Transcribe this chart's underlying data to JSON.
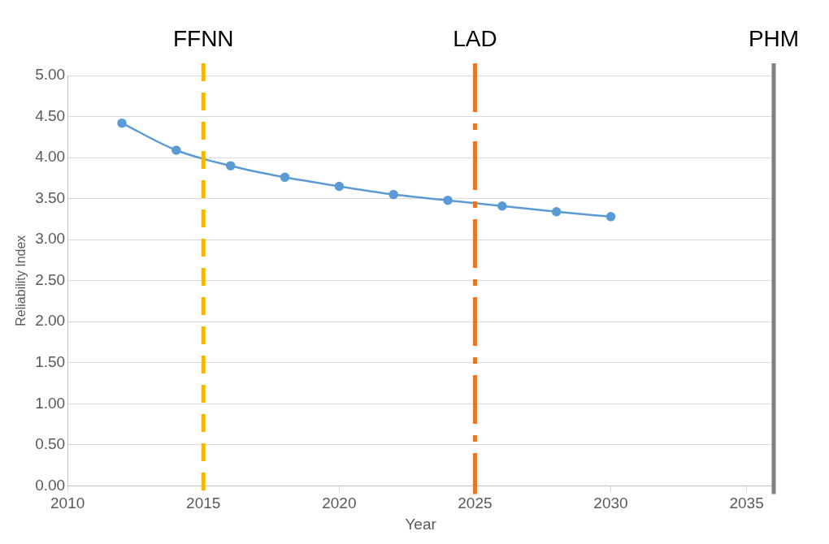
{
  "chart_data": {
    "type": "line",
    "xlabel": "Year",
    "ylabel": "Reliability Index",
    "x": [
      2012,
      2014,
      2016,
      2018,
      2020,
      2022,
      2024,
      2026,
      2028,
      2030
    ],
    "series": [
      {
        "color": "#5b9bd5",
        "values": [
          4.42,
          4.09,
          3.9,
          3.76,
          3.65,
          3.55,
          3.48,
          3.41,
          3.34,
          3.28
        ]
      }
    ],
    "xlim": [
      2010,
      2036
    ],
    "xticks": [
      2010,
      2015,
      2020,
      2025,
      2030,
      2035
    ],
    "ylim": [
      0,
      5
    ],
    "yticks": [
      {
        "value": 0,
        "label": "0.00"
      },
      {
        "value": 0.5,
        "label": "0.50"
      },
      {
        "value": 1,
        "label": "1.00"
      },
      {
        "value": 1.5,
        "label": "1.50"
      },
      {
        "value": 2,
        "label": "2.00"
      },
      {
        "value": 2.5,
        "label": "2.50"
      },
      {
        "value": 3,
        "label": "3.00"
      },
      {
        "value": 3.5,
        "label": "3.50"
      },
      {
        "value": 4,
        "label": "4.00"
      },
      {
        "value": 4.5,
        "label": "4.50"
      },
      {
        "value": 5,
        "label": "5.00"
      }
    ],
    "ref_lines": [
      {
        "axis": "x",
        "value": 2015,
        "label": "FFNN",
        "color": "#f5b800",
        "line_style": "dashed"
      },
      {
        "axis": "x",
        "value": 2025,
        "label": "LAD",
        "color": "#e87722",
        "line_style": "dashdot"
      },
      {
        "axis": "x",
        "value": 2036,
        "label": "PHM",
        "color": "#808080",
        "line_style": "solid"
      }
    ],
    "grid": "y",
    "marker": "circle",
    "line_style": "solid",
    "legend": false
  }
}
